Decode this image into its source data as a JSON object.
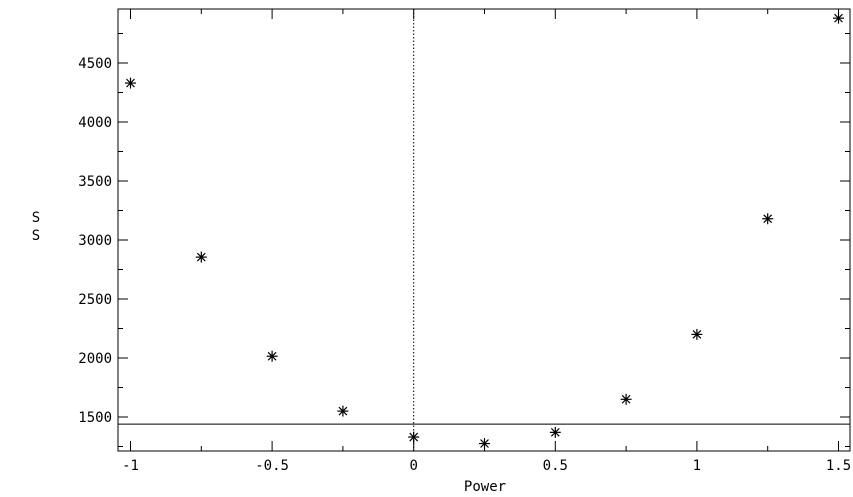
{
  "chart_data": {
    "type": "scatter",
    "title": "",
    "xlabel": "Power",
    "ylabel": "S\nS",
    "xlim": [
      -1.05,
      1.55
    ],
    "ylim": [
      1220,
      4920
    ],
    "x_ticks": [
      {
        "value": -1,
        "label": "-1"
      },
      {
        "value": -0.5,
        "label": "-0.5"
      },
      {
        "value": 0,
        "label": "0"
      },
      {
        "value": 0.5,
        "label": "0.5"
      },
      {
        "value": 1,
        "label": "1"
      },
      {
        "value": 1.5,
        "label": "1.5"
      }
    ],
    "x_minor_ticks": [
      -0.75,
      -0.25,
      0.25,
      0.75,
      1.25
    ],
    "y_ticks": [
      {
        "value": 1500,
        "label": "1500"
      },
      {
        "value": 2000,
        "label": "2000"
      },
      {
        "value": 2500,
        "label": "2500"
      },
      {
        "value": 3000,
        "label": "3000"
      },
      {
        "value": 3500,
        "label": "3500"
      },
      {
        "value": 4000,
        "label": "4000"
      },
      {
        "value": 4500,
        "label": "4500"
      }
    ],
    "points": [
      {
        "x": -1.0,
        "y": 4330
      },
      {
        "x": -0.75,
        "y": 2855
      },
      {
        "x": -0.5,
        "y": 2015
      },
      {
        "x": -0.25,
        "y": 1550
      },
      {
        "x": 0.0,
        "y": 1330
      },
      {
        "x": 0.25,
        "y": 1275
      },
      {
        "x": 0.5,
        "y": 1370
      },
      {
        "x": 0.75,
        "y": 1650
      },
      {
        "x": 1.0,
        "y": 2200
      },
      {
        "x": 1.25,
        "y": 3180
      },
      {
        "x": 1.5,
        "y": 4880
      }
    ],
    "reference_lines": {
      "vertical_x": 0,
      "horizontal_y": 1440
    },
    "marker": "asterisk",
    "grid": false,
    "legend": "none",
    "colors": {
      "background": "#ffffff",
      "foreground": "#000000"
    }
  }
}
